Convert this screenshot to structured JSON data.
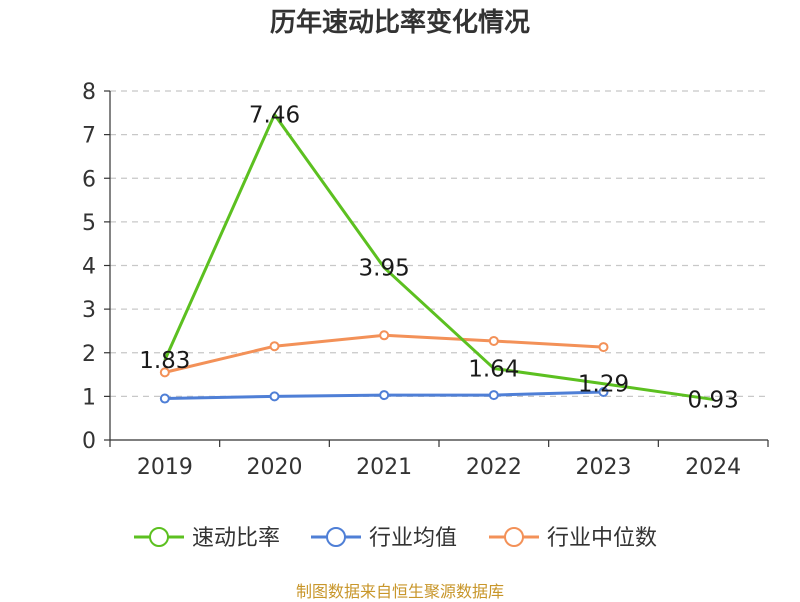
{
  "chart_data": {
    "type": "line",
    "title": "历年速动比率变化情况",
    "categories": [
      "2019",
      "2020",
      "2021",
      "2022",
      "2023",
      "2024"
    ],
    "ylim": [
      0,
      8
    ],
    "yticks": [
      "0",
      "1",
      "2",
      "3",
      "4",
      "5",
      "6",
      "7",
      "8"
    ],
    "grid": true,
    "legend_position": "bottom",
    "series": [
      {
        "name": "速动比率",
        "color": "#5cc020",
        "values": [
          1.83,
          7.46,
          3.95,
          1.64,
          1.29,
          0.93
        ],
        "labels": [
          "1.83",
          "7.46",
          "3.95",
          "1.64",
          "1.29",
          "0.93"
        ]
      },
      {
        "name": "行业均值",
        "color": "#4f7fd6",
        "values": [
          0.95,
          1.0,
          1.03,
          1.03,
          1.1,
          null
        ]
      },
      {
        "name": "行业中位数",
        "color": "#f39158",
        "values": [
          1.55,
          2.15,
          2.4,
          2.27,
          2.13,
          null
        ]
      }
    ]
  },
  "source": "制图数据来自恒生聚源数据库"
}
